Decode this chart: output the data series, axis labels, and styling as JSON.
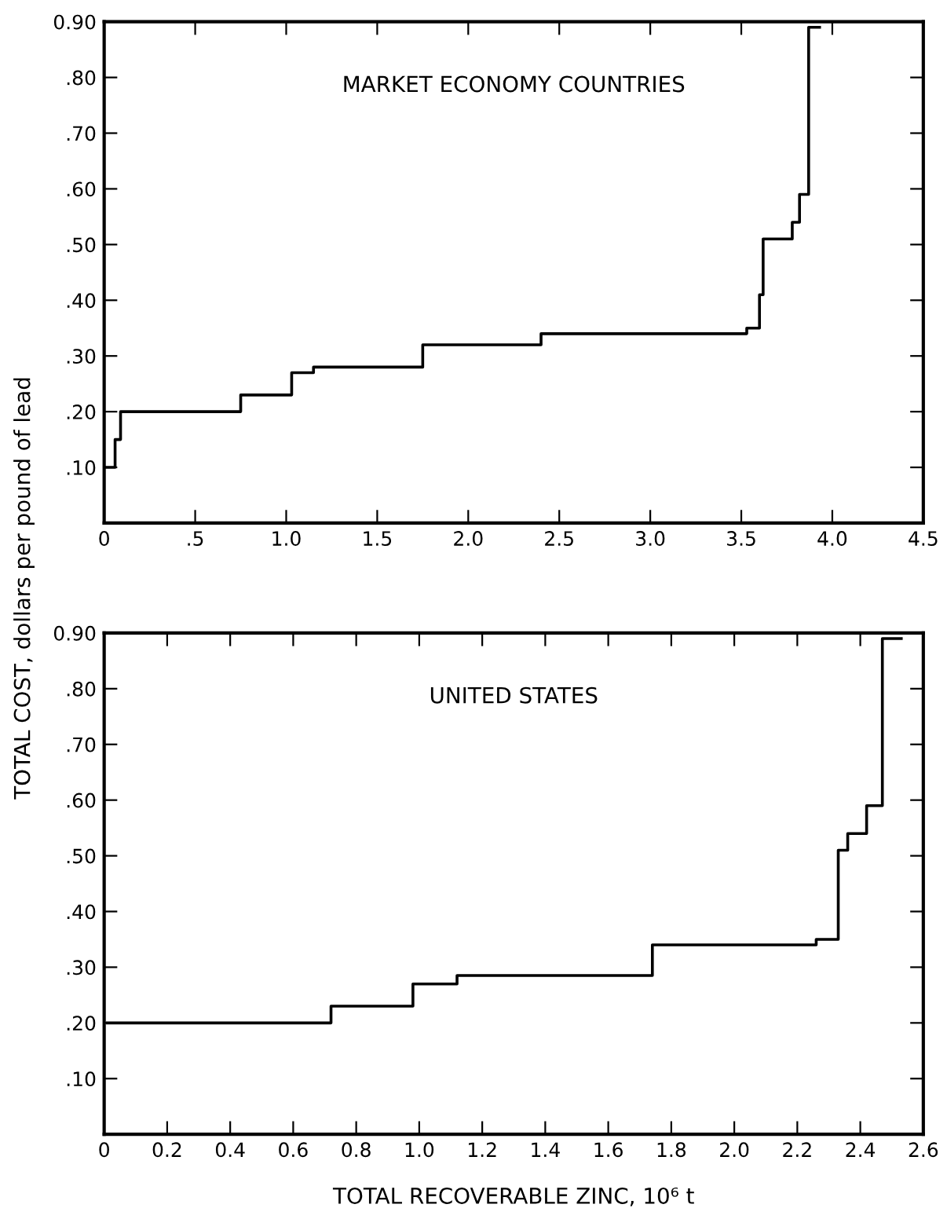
{
  "chart_data": [
    {
      "type": "step",
      "title": "MARKET ECONOMY COUNTRIES",
      "x": [
        0,
        0.06,
        0.09,
        0.75,
        1.03,
        1.15,
        1.75,
        2.4,
        3.53,
        3.6,
        3.62,
        3.78,
        3.82,
        3.87,
        3.93
      ],
      "series": [
        {
          "color": "#000000",
          "values": [
            0.1,
            0.15,
            0.2,
            0.23,
            0.27,
            0.28,
            0.32,
            0.34,
            0.35,
            0.41,
            0.51,
            0.54,
            0.59,
            0.89,
            0.89
          ]
        }
      ],
      "xlim": [
        0,
        4.5
      ],
      "xticks": [
        0,
        {
          "value": 0.5,
          "label": ".5"
        },
        {
          "value": 1,
          "label": "1.0"
        },
        {
          "value": 1.5,
          "label": "1.5"
        },
        {
          "value": 2,
          "label": "2.0"
        },
        {
          "value": 2.5,
          "label": "2.5"
        },
        {
          "value": 3,
          "label": "3.0"
        },
        {
          "value": 3.5,
          "label": "3.5"
        },
        {
          "value": 4,
          "label": "4.0"
        },
        {
          "value": 4.5,
          "label": "4.5"
        }
      ],
      "ylim": [
        0,
        0.9
      ],
      "yticks": [
        {
          "value": 0.1,
          "label": ".10"
        },
        {
          "value": 0.2,
          "label": ".20"
        },
        {
          "value": 0.3,
          "label": ".30"
        },
        {
          "value": 0.4,
          "label": ".40"
        },
        {
          "value": 0.5,
          "label": ".50"
        },
        {
          "value": 0.6,
          "label": ".60"
        },
        {
          "value": 0.7,
          "label": ".70"
        },
        {
          "value": 0.8,
          "label": ".80"
        },
        {
          "value": 0.9,
          "label": "0.90"
        }
      ],
      "grid": false,
      "legend": false
    },
    {
      "type": "step",
      "title": "UNITED STATES",
      "xlabel": "TOTAL RECOVERABLE ZINC, 10⁶ t",
      "ylabel": "TOTAL COST, dollars per pound of lead",
      "x": [
        0.01,
        0.72,
        0.98,
        1.12,
        1.74,
        2.26,
        2.33,
        2.36,
        2.42,
        2.47,
        2.53
      ],
      "series": [
        {
          "color": "#000000",
          "values": [
            0.2,
            0.23,
            0.27,
            0.285,
            0.34,
            0.35,
            0.51,
            0.54,
            0.59,
            0.89,
            0.89
          ]
        }
      ],
      "xlim": [
        0,
        2.6
      ],
      "xticks": [
        0,
        {
          "value": 0.2,
          "label": "0.2"
        },
        {
          "value": 0.4,
          "label": "0.4"
        },
        {
          "value": 0.6,
          "label": "0.6"
        },
        {
          "value": 0.8,
          "label": "0.8"
        },
        {
          "value": 1.0,
          "label": "1.0"
        },
        {
          "value": 1.2,
          "label": "1.2"
        },
        {
          "value": 1.4,
          "label": "1.4"
        },
        {
          "value": 1.6,
          "label": "1.6"
        },
        {
          "value": 1.8,
          "label": "1.8"
        },
        {
          "value": 2.0,
          "label": "2.0"
        },
        {
          "value": 2.2,
          "label": "2.2"
        },
        {
          "value": 2.4,
          "label": "2.4"
        },
        {
          "value": 2.6,
          "label": "2.6"
        }
      ],
      "ylim": [
        0,
        0.9
      ],
      "yticks": [
        {
          "value": 0.1,
          "label": ".10"
        },
        {
          "value": 0.2,
          "label": ".20"
        },
        {
          "value": 0.3,
          "label": ".30"
        },
        {
          "value": 0.4,
          "label": ".40"
        },
        {
          "value": 0.5,
          "label": ".50"
        },
        {
          "value": 0.6,
          "label": ".60"
        },
        {
          "value": 0.7,
          "label": ".70"
        },
        {
          "value": 0.8,
          "label": ".80"
        },
        {
          "value": 0.9,
          "label": "0.90"
        }
      ],
      "grid": false,
      "legend": false
    }
  ]
}
